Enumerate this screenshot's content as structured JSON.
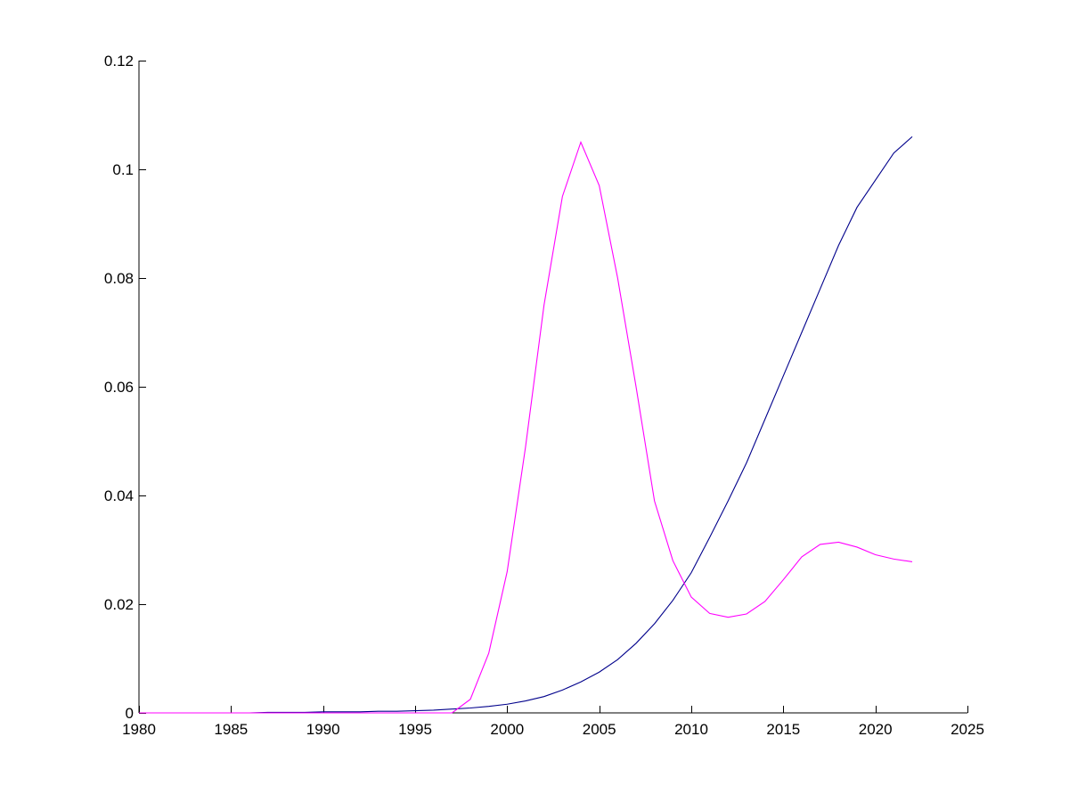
{
  "chart_data": {
    "type": "line",
    "title": "",
    "xlabel": "",
    "ylabel": "",
    "xlim": [
      1980,
      2025
    ],
    "ylim": [
      0,
      0.12
    ],
    "x_ticks": [
      "1980",
      "1985",
      "1990",
      "1995",
      "2000",
      "2005",
      "2010",
      "2015",
      "2020",
      "2025"
    ],
    "y_ticks": [
      "0",
      "0.02",
      "0.04",
      "0.06",
      "0.08",
      "0.1",
      "0.12"
    ],
    "grid": false,
    "legend": "none",
    "series": [
      {
        "color": "#00008b",
        "x": [
          1980,
          1981,
          1982,
          1983,
          1984,
          1985,
          1986,
          1987,
          1988,
          1989,
          1990,
          1991,
          1992,
          1993,
          1994,
          1995,
          1996,
          1997,
          1998,
          1999,
          2000,
          2001,
          2002,
          2003,
          2004,
          2005,
          2006,
          2007,
          2008,
          2009,
          2010,
          2011,
          2012,
          2013,
          2014,
          2015,
          2016,
          2017,
          2018,
          2019,
          2020,
          2021,
          2022
        ],
        "y": [
          0,
          0,
          0,
          0,
          0,
          0,
          0,
          0.0001,
          0.0001,
          0.0001,
          0.0002,
          0.0002,
          0.0002,
          0.0003,
          0.0003,
          0.0004,
          0.0005,
          0.0007,
          0.0009,
          0.0012,
          0.0016,
          0.0022,
          0.003,
          0.0042,
          0.0057,
          0.0075,
          0.0098,
          0.0128,
          0.0164,
          0.0207,
          0.0258,
          0.0323,
          0.039,
          0.046,
          0.054,
          0.062,
          0.07,
          0.078,
          0.086,
          0.093,
          0.098,
          0.103,
          0.106
        ]
      },
      {
        "color": "#ff00ff",
        "x": [
          1980,
          1981,
          1982,
          1983,
          1984,
          1985,
          1986,
          1987,
          1988,
          1989,
          1990,
          1991,
          1992,
          1993,
          1994,
          1995,
          1996,
          1997,
          1998,
          1999,
          2000,
          2001,
          2002,
          2003,
          2004,
          2005,
          2006,
          2007,
          2008,
          2009,
          2010,
          2011,
          2012,
          2013,
          2014,
          2015,
          2016,
          2017,
          2018,
          2019,
          2020,
          2021,
          2022
        ],
        "y": [
          0,
          0,
          0,
          0,
          0,
          0,
          0,
          0,
          0,
          0,
          0,
          0,
          0,
          0,
          0,
          0,
          0,
          0,
          0.0025,
          0.011,
          0.026,
          0.049,
          0.075,
          0.095,
          0.105,
          0.097,
          0.08,
          0.06,
          0.039,
          0.028,
          0.0213,
          0.0183,
          0.0176,
          0.0182,
          0.0205,
          0.0245,
          0.0287,
          0.031,
          0.0314,
          0.0305,
          0.0291,
          0.0283,
          0.0278
        ]
      }
    ]
  }
}
